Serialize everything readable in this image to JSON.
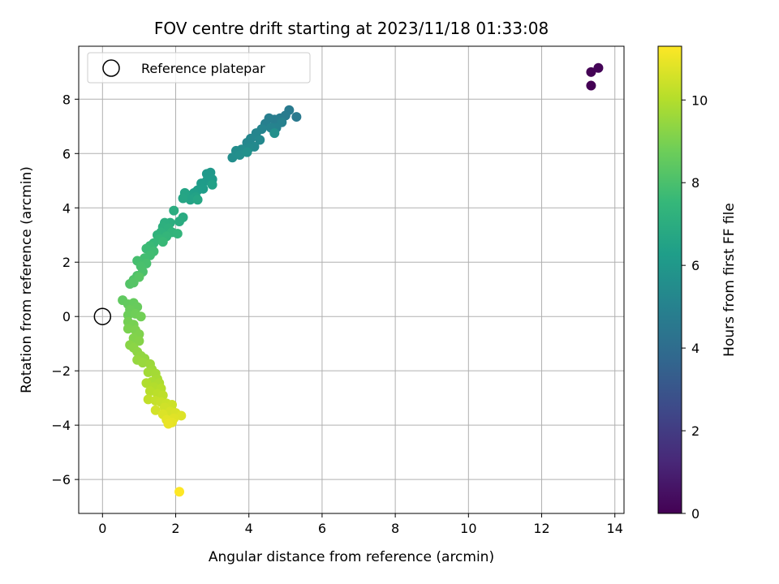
{
  "colors": {
    "grid": "#b0b0b0",
    "reference_marker": "#000000",
    "viridis": [
      "#440154",
      "#482878",
      "#3e4989",
      "#31688e",
      "#26828e",
      "#1f9e89",
      "#35b779",
      "#6ece58",
      "#b5de2b",
      "#fde725"
    ]
  },
  "chart_data": {
    "type": "scatter",
    "title": "FOV centre drift starting at 2023/11/18 01:33:08",
    "xlabel": "Angular distance from reference (arcmin)",
    "ylabel": "Rotation from reference (arcmin)",
    "xlim": [
      -0.65,
      14.25
    ],
    "ylim": [
      -7.25,
      9.95
    ],
    "xticks": [
      0,
      2,
      4,
      6,
      8,
      10,
      12,
      14
    ],
    "yticks": [
      -6,
      -4,
      -2,
      0,
      2,
      4,
      6,
      8
    ],
    "grid": true,
    "legend": {
      "placement": "upper-left",
      "entries": [
        "Reference platepar"
      ]
    },
    "reference_point": {
      "x": 0,
      "y": 0,
      "label": "Reference platepar"
    },
    "colorbar": {
      "label": "Hours from first FF file",
      "colormap": "viridis",
      "range": [
        0,
        11.3
      ],
      "ticks": [
        0,
        2,
        4,
        6,
        8,
        10
      ]
    },
    "points": [
      [
        13.35,
        8.5,
        0.0
      ],
      [
        13.35,
        9.0,
        0.05
      ],
      [
        13.55,
        9.15,
        0.1
      ],
      [
        5.3,
        7.35,
        4.6
      ],
      [
        5.1,
        7.6,
        4.65
      ],
      [
        5.0,
        7.4,
        4.7
      ],
      [
        4.85,
        7.3,
        4.75
      ],
      [
        4.7,
        7.25,
        4.8
      ],
      [
        4.55,
        7.3,
        4.85
      ],
      [
        4.45,
        7.1,
        4.9
      ],
      [
        4.9,
        7.15,
        4.95
      ],
      [
        4.75,
        6.95,
        5.0
      ],
      [
        4.6,
        6.95,
        5.05
      ],
      [
        4.35,
        6.9,
        5.1
      ],
      [
        4.2,
        6.75,
        5.15
      ],
      [
        4.05,
        6.55,
        5.2
      ],
      [
        3.95,
        6.4,
        5.25
      ],
      [
        4.3,
        6.5,
        5.3
      ],
      [
        4.15,
        6.25,
        5.35
      ],
      [
        4.0,
        6.2,
        5.4
      ],
      [
        3.8,
        6.15,
        5.45
      ],
      [
        3.65,
        6.1,
        5.5
      ],
      [
        3.55,
        5.85,
        5.55
      ],
      [
        3.75,
        5.95,
        5.6
      ],
      [
        4.7,
        6.75,
        5.65
      ],
      [
        3.95,
        6.05,
        5.7
      ],
      [
        2.95,
        5.3,
        6.0
      ],
      [
        2.85,
        5.25,
        6.05
      ],
      [
        3.0,
        5.05,
        6.1
      ],
      [
        2.85,
        5.0,
        6.15
      ],
      [
        2.7,
        4.9,
        6.2
      ],
      [
        2.75,
        4.7,
        6.25
      ],
      [
        2.6,
        4.65,
        6.3
      ],
      [
        2.5,
        4.55,
        6.35
      ],
      [
        2.35,
        4.45,
        6.4
      ],
      [
        3.0,
        4.85,
        6.45
      ],
      [
        2.55,
        4.4,
        6.5
      ],
      [
        2.4,
        4.3,
        6.55
      ],
      [
        2.25,
        4.55,
        6.6
      ],
      [
        2.2,
        4.35,
        6.65
      ],
      [
        2.6,
        4.3,
        6.7
      ],
      [
        2.2,
        3.65,
        6.9
      ],
      [
        2.1,
        3.5,
        6.95
      ],
      [
        1.95,
        3.9,
        7.0
      ],
      [
        1.85,
        3.45,
        7.05
      ],
      [
        1.7,
        3.45,
        7.1
      ],
      [
        1.65,
        3.3,
        7.15
      ],
      [
        1.8,
        3.25,
        7.2
      ],
      [
        1.6,
        3.1,
        7.25
      ],
      [
        1.5,
        3.0,
        7.3
      ],
      [
        1.9,
        3.1,
        7.35
      ],
      [
        2.05,
        3.05,
        7.4
      ],
      [
        1.75,
        2.95,
        7.45
      ],
      [
        1.55,
        2.85,
        7.5
      ],
      [
        1.4,
        2.7,
        7.55
      ],
      [
        1.65,
        2.75,
        7.6
      ],
      [
        1.3,
        2.6,
        7.65
      ],
      [
        1.2,
        2.5,
        7.7
      ],
      [
        1.4,
        2.4,
        7.75
      ],
      [
        1.3,
        2.25,
        7.8
      ],
      [
        1.15,
        2.15,
        7.85
      ],
      [
        0.95,
        2.05,
        7.9
      ],
      [
        1.2,
        1.95,
        7.95
      ],
      [
        1.05,
        1.85,
        8.0
      ],
      [
        1.1,
        1.65,
        8.05
      ],
      [
        0.95,
        1.5,
        8.1
      ],
      [
        0.85,
        1.35,
        8.15
      ],
      [
        0.75,
        1.2,
        8.2
      ],
      [
        0.85,
        1.25,
        8.25
      ],
      [
        1.0,
        1.45,
        8.3
      ],
      [
        0.55,
        0.6,
        8.5
      ],
      [
        0.7,
        0.45,
        8.55
      ],
      [
        0.85,
        0.5,
        8.6
      ],
      [
        0.95,
        0.35,
        8.65
      ],
      [
        0.75,
        0.25,
        8.7
      ],
      [
        0.7,
        0.05,
        8.75
      ],
      [
        0.9,
        0.1,
        8.8
      ],
      [
        1.05,
        0.0,
        8.85
      ],
      [
        0.7,
        -0.2,
        8.9
      ],
      [
        0.85,
        -0.3,
        8.95
      ],
      [
        0.7,
        -0.45,
        9.0
      ],
      [
        0.9,
        -0.5,
        9.05
      ],
      [
        1.0,
        -0.65,
        9.1
      ],
      [
        0.85,
        -0.8,
        9.15
      ],
      [
        1.0,
        -0.9,
        9.2
      ],
      [
        0.75,
        -1.05,
        9.25
      ],
      [
        0.85,
        -1.15,
        9.3
      ],
      [
        0.95,
        -1.3,
        9.35
      ],
      [
        1.05,
        -1.45,
        9.4
      ],
      [
        1.15,
        -1.55,
        9.45
      ],
      [
        0.95,
        -1.6,
        9.5
      ],
      [
        1.1,
        -1.7,
        9.55
      ],
      [
        1.3,
        -1.75,
        9.6
      ],
      [
        1.35,
        -1.95,
        9.65
      ],
      [
        1.25,
        -2.05,
        9.7
      ],
      [
        1.45,
        -2.1,
        9.75
      ],
      [
        1.5,
        -2.3,
        9.8
      ],
      [
        1.35,
        -2.4,
        9.85
      ],
      [
        1.55,
        -2.45,
        9.9
      ],
      [
        1.2,
        -2.45,
        9.95
      ],
      [
        1.4,
        -2.6,
        10.0
      ],
      [
        1.6,
        -2.65,
        10.05
      ],
      [
        1.3,
        -2.75,
        10.1
      ],
      [
        1.5,
        -2.85,
        10.15
      ],
      [
        1.65,
        -2.9,
        10.2
      ],
      [
        1.25,
        -3.05,
        10.25
      ],
      [
        1.45,
        -3.1,
        10.3
      ],
      [
        1.6,
        -3.15,
        10.35
      ],
      [
        1.75,
        -3.2,
        10.4
      ],
      [
        1.9,
        -3.25,
        10.45
      ],
      [
        1.7,
        -3.35,
        10.5
      ],
      [
        1.45,
        -3.45,
        10.55
      ],
      [
        1.85,
        -3.5,
        10.6
      ],
      [
        2.0,
        -3.55,
        10.65
      ],
      [
        1.65,
        -3.6,
        10.7
      ],
      [
        2.15,
        -3.65,
        10.75
      ],
      [
        1.95,
        -3.75,
        10.8
      ],
      [
        1.75,
        -3.8,
        10.85
      ],
      [
        1.9,
        -3.9,
        10.9
      ],
      [
        1.8,
        -3.95,
        10.95
      ],
      [
        2.1,
        -6.45,
        11.3
      ]
    ]
  }
}
